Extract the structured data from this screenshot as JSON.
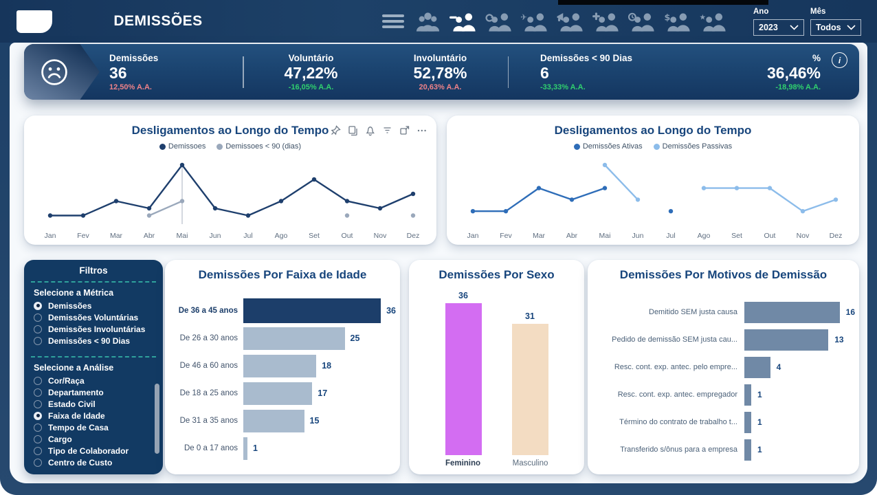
{
  "colors": {
    "navy": "#17457c",
    "header_bg": "#1a3a60",
    "panel_bg": "#123a63",
    "green": "#30d06e",
    "red": "#ee8289",
    "bar_gray": "#a9bbce",
    "bar_dark": "#1c3e6a",
    "bar_slate": "#7089a6",
    "female": "#d36df2",
    "male": "#f3dcc2",
    "line_dark": "#1e3f6d",
    "line_gray": "#9aa8bb",
    "line_blue": "#2e6db8",
    "line_lightblue": "#8cbcea",
    "teal_dash": "#2fa29c"
  },
  "header": {
    "title": "DEMISSÕES",
    "year_label": "Ano",
    "year_value": "2023",
    "month_label": "Mês",
    "month_value": "Todos",
    "nav_icons": [
      {
        "name": "people-group",
        "mod": "group",
        "active": false
      },
      {
        "name": "person-minus-demissoes",
        "mod": "minus",
        "active": true
      },
      {
        "name": "people-refresh",
        "mod": "refresh",
        "active": false
      },
      {
        "name": "people-airplane",
        "mod": "plane",
        "active": false
      },
      {
        "name": "people-megaphone",
        "mod": "megaphone",
        "active": false
      },
      {
        "name": "people-plus",
        "mod": "plus",
        "active": false
      },
      {
        "name": "people-clock",
        "mod": "clock",
        "active": false
      },
      {
        "name": "people-dollar",
        "mod": "dollar",
        "active": false
      },
      {
        "name": "people-star",
        "mod": "star",
        "active": false
      }
    ]
  },
  "kpis": {
    "info_glyph": "i",
    "items": [
      {
        "label": "Demissões",
        "value": "36",
        "delta": "12,50% A.A.",
        "delta_color": "#ee8289"
      },
      {
        "label": "Voluntário",
        "value": "47,22%",
        "delta": "-16,05% A.A.",
        "delta_color": "#30d06e"
      },
      {
        "label": "Involuntário",
        "value": "52,78%",
        "delta": "20,63% A.A.",
        "delta_color": "#ee8289"
      },
      {
        "label": "Demissões < 90 Dias",
        "value": "6",
        "delta": "-33,33% A.A.",
        "delta_color": "#30d06e"
      },
      {
        "label": "%",
        "value": "36,46%",
        "delta": "-18,98% A.A.",
        "delta_color": "#30d06e"
      }
    ]
  },
  "filters": {
    "title": "Filtros",
    "metric_label": "Selecione a Métrica",
    "metrics": [
      {
        "label": "Demissões",
        "selected": true
      },
      {
        "label": "Demissões Voluntárias",
        "selected": false
      },
      {
        "label": "Demissões Involuntárias",
        "selected": false
      },
      {
        "label": "Demissões < 90 Dias",
        "selected": false
      }
    ],
    "analysis_label": "Selecione a Análise",
    "analysis": [
      {
        "label": "Cor/Raça",
        "selected": false
      },
      {
        "label": "Departamento",
        "selected": false
      },
      {
        "label": "Estado Civil",
        "selected": false
      },
      {
        "label": "Faixa de Idade",
        "selected": true
      },
      {
        "label": "Tempo de Casa",
        "selected": false
      },
      {
        "label": "Cargo",
        "selected": false
      },
      {
        "label": "Tipo de Colaborador",
        "selected": false
      },
      {
        "label": "Centro de Custo",
        "selected": false
      }
    ]
  },
  "toolbar_icons": [
    {
      "name": "pin-icon"
    },
    {
      "name": "copy-icon"
    },
    {
      "name": "alert-icon"
    },
    {
      "name": "filter-icon"
    },
    {
      "name": "focus-mode-icon"
    },
    {
      "name": "more-options-icon"
    }
  ],
  "chart_data": [
    {
      "id": "left_line",
      "type": "line",
      "title": "Desligamentos ao Longo do Tempo",
      "x": [
        "Jan",
        "Fev",
        "Mar",
        "Abr",
        "Mai",
        "Jun",
        "Jul",
        "Ago",
        "Set",
        "Out",
        "Nov",
        "Dez"
      ],
      "ylim": [
        0,
        8
      ],
      "legend_position": "top",
      "grid": false,
      "marker_month": "Mai",
      "series": [
        {
          "name": "Demissoes",
          "color": "#1e3f6d",
          "values": [
            1,
            1,
            3,
            2,
            8,
            2,
            1,
            3,
            6,
            3,
            2,
            4
          ]
        },
        {
          "name": "Demissoes < 90 (dias)",
          "color": "#9aa8bb",
          "values": [
            null,
            null,
            null,
            1,
            3,
            null,
            null,
            null,
            null,
            1,
            null,
            1
          ]
        }
      ]
    },
    {
      "id": "right_line",
      "type": "line",
      "title": "Desligamentos ao Longo do Tempo",
      "x": [
        "Jan",
        "Fev",
        "Mar",
        "Abr",
        "Mai",
        "Jun",
        "Jul",
        "Ago",
        "Set",
        "Out",
        "Nov",
        "Dez"
      ],
      "ylim": [
        0,
        5
      ],
      "legend_position": "top",
      "grid": false,
      "series": [
        {
          "name": "Demissões Ativas",
          "color": "#2e6db8",
          "values": [
            1,
            1,
            3,
            2,
            3,
            null,
            1,
            null,
            null,
            null,
            null,
            null
          ]
        },
        {
          "name": "Demissões Passivas",
          "color": "#8cbcea",
          "values": [
            null,
            null,
            null,
            null,
            5,
            2,
            null,
            3,
            3,
            3,
            1,
            2
          ]
        }
      ]
    },
    {
      "id": "by_age",
      "type": "bar",
      "orientation": "horizontal",
      "title": "Demissões Por Faixa de Idade",
      "categories": [
        "De 36 a 45 anos",
        "De 26 a 30 anos",
        "De 46 a 60 anos",
        "De 18 a 25 anos",
        "De 31 a 35 anos",
        "De 0 a 17 anos"
      ],
      "values": [
        36,
        25,
        18,
        17,
        15,
        1
      ],
      "xlim": [
        0,
        36
      ]
    },
    {
      "id": "by_sex",
      "type": "bar",
      "orientation": "vertical",
      "title": "Demissões Por Sexo",
      "categories": [
        "Feminino",
        "Masculino"
      ],
      "values": [
        36,
        31
      ],
      "bar_colors": [
        "#d36df2",
        "#f3dcc2"
      ]
    },
    {
      "id": "by_reason",
      "type": "bar",
      "orientation": "horizontal",
      "title": "Demissões Por Motivos de Demissão",
      "categories": [
        "Demitido SEM justa causa",
        "Pedido de demissão SEM justa cau...",
        "Resc. cont. exp. antec. pelo empre...",
        "Resc. cont. exp. antec. empregador",
        "Término do contrato de trabalho t...",
        "Transferido s/ônus para a empresa"
      ],
      "values": [
        16,
        13,
        4,
        1,
        1,
        1
      ],
      "xlim": [
        0,
        16
      ]
    }
  ]
}
